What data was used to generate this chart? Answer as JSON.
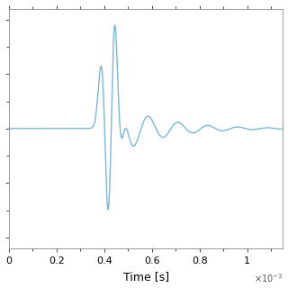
{
  "title": "",
  "xlabel": "Time [s]",
  "ylabel": "",
  "line_color": "#7ab8d4",
  "line_width": 1.0,
  "background_color": "#ffffff",
  "xlim": [
    0,
    1.15
  ],
  "ylim": [
    -1.1,
    1.1
  ],
  "xticks": [
    0,
    0.2,
    0.4,
    0.6,
    0.8,
    1.0
  ],
  "xticklabels": [
    "0",
    "0.2",
    "0.4",
    "0.6",
    "0.8",
    "1"
  ],
  "figsize": [
    3.2,
    3.2
  ],
  "dpi": 100,
  "t0": 0.43,
  "sigma": 0.03
}
